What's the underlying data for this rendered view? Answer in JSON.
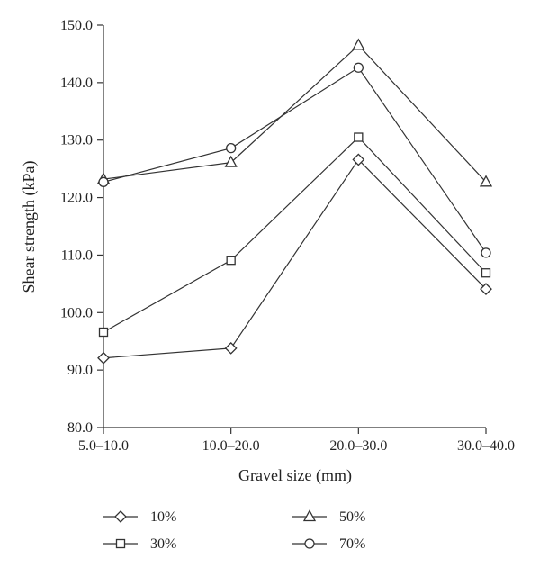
{
  "chart_data": {
    "type": "line",
    "categories": [
      "5.0–10.0",
      "10.0–20.0",
      "20.0–30.0",
      "30.0–40.0"
    ],
    "xlabel": "Gravel size (mm)",
    "ylabel": "Shear strength (kPa)",
    "ylim": [
      80,
      150
    ],
    "yticks": [
      "80.0",
      "90.0",
      "100.0",
      "110.0",
      "120.0",
      "130.0",
      "140.0",
      "150.0"
    ],
    "grid": false,
    "legend_position": "bottom",
    "series": [
      {
        "name": "10%",
        "marker": "diamond",
        "color": "#333333",
        "values": [
          92.1,
          93.8,
          126.6,
          104.1
        ]
      },
      {
        "name": "30%",
        "marker": "square",
        "color": "#333333",
        "values": [
          96.6,
          109.1,
          130.5,
          106.9
        ]
      },
      {
        "name": "50%",
        "marker": "triangle",
        "color": "#333333",
        "values": [
          123.2,
          126.1,
          146.5,
          122.7
        ]
      },
      {
        "name": "70%",
        "marker": "circle",
        "color": "#333333",
        "values": [
          122.7,
          128.6,
          142.6,
          110.4
        ]
      }
    ]
  }
}
